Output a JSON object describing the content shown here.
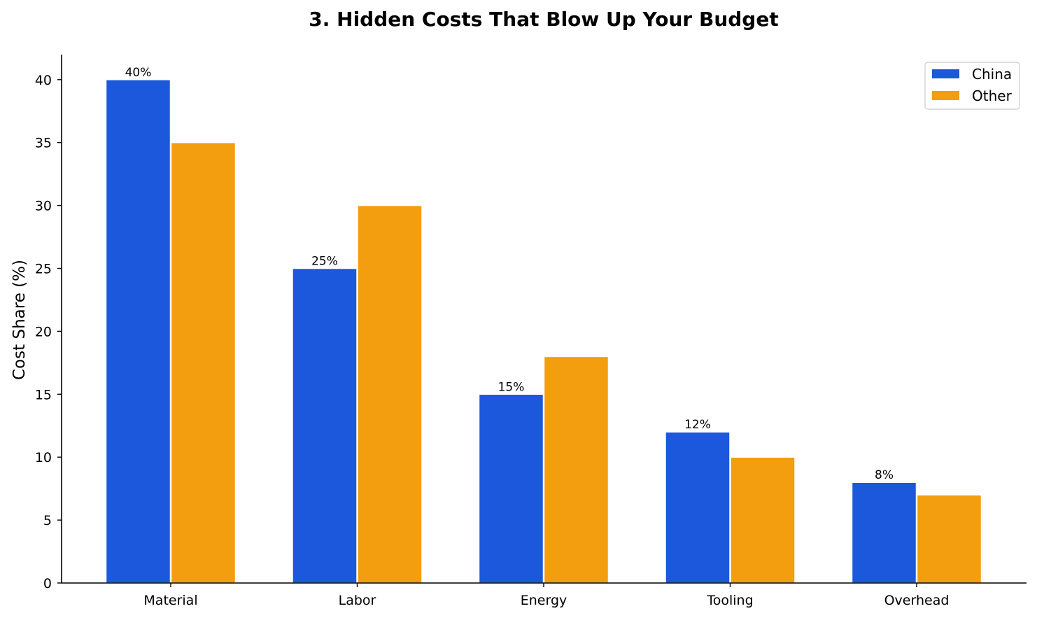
{
  "chart_data": {
    "type": "bar",
    "title": "3. Hidden Costs That Blow Up Your Budget",
    "xlabel": "",
    "ylabel": "Cost Share (%)",
    "categories": [
      "Material",
      "Labor",
      "Energy",
      "Tooling",
      "Overhead"
    ],
    "series": [
      {
        "name": "China",
        "values": [
          40,
          25,
          15,
          12,
          8
        ],
        "color": "#1c58dc",
        "data_labels": [
          "40%",
          "25%",
          "15%",
          "12%",
          "8%"
        ]
      },
      {
        "name": "Other",
        "values": [
          35,
          30,
          18,
          10,
          7
        ],
        "color": "#f39e0e"
      }
    ],
    "ylim": [
      0,
      42
    ],
    "yticks": [
      0,
      5,
      10,
      15,
      20,
      25,
      30,
      35,
      40
    ],
    "grid": false,
    "legend_position": "top-right"
  }
}
